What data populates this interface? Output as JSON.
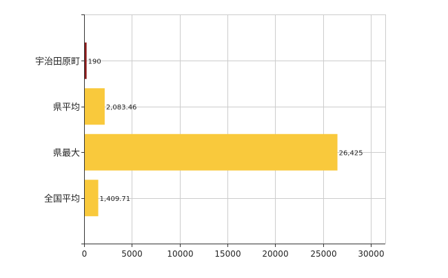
{
  "chart_data": {
    "type": "bar",
    "orientation": "horizontal",
    "categories": [
      "宇治田原町",
      "県平均",
      "県最大",
      "全国平均"
    ],
    "values": [
      190,
      2083.46,
      26425,
      1409.71
    ],
    "value_labels": [
      "190",
      "2,083.46",
      "26,425",
      "1,409.71"
    ],
    "bar_colors": [
      "#8b1a1a",
      "#f9c93c",
      "#f9c93c",
      "#f9c93c"
    ],
    "xlim": [
      0,
      31500
    ],
    "xticks": [
      0,
      5000,
      10000,
      15000,
      20000,
      25000,
      30000
    ],
    "xtick_labels": [
      "0",
      "5000",
      "10000",
      "15000",
      "20000",
      "25000",
      "30000"
    ],
    "grid": true,
    "title": "",
    "xlabel": "",
    "ylabel": ""
  }
}
